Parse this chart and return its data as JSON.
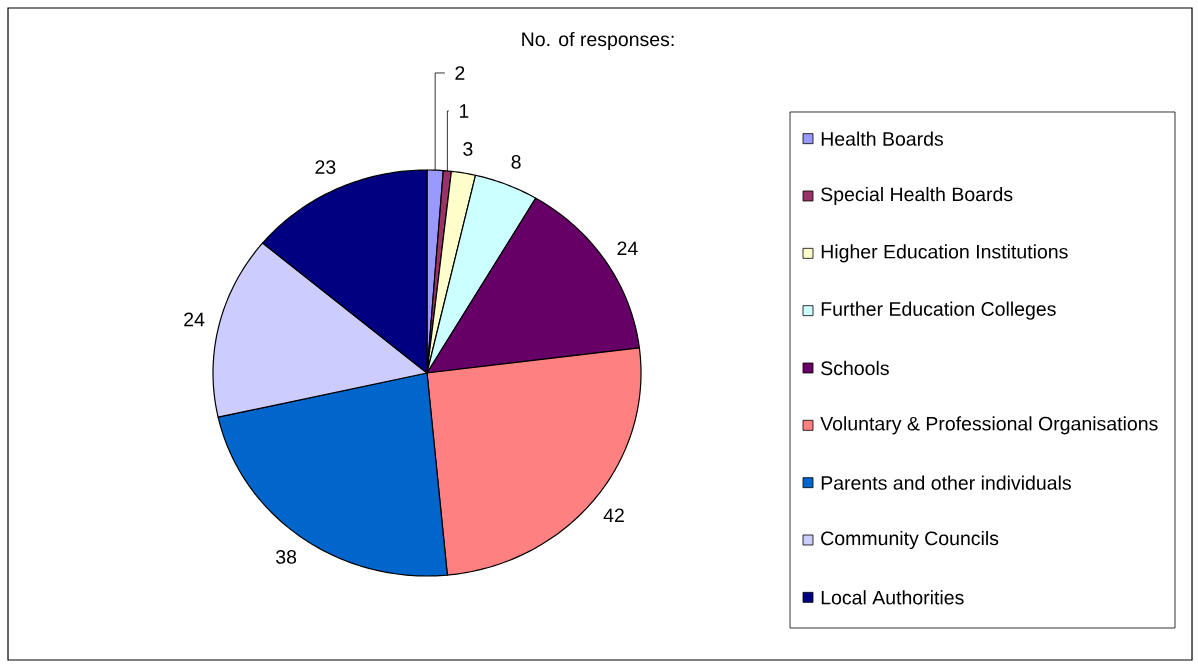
{
  "chart_data": {
    "type": "pie",
    "title": "No. of responses:",
    "categories": [
      "Health Boards",
      "Special Health Boards",
      "Higher Education Institutions",
      "Further Education Colleges",
      "Schools",
      "Voluntary & Professional Organisations",
      "Parents and other individuals",
      "Community Councils",
      "Local Authorities"
    ],
    "values": [
      2,
      1,
      3,
      8,
      24,
      42,
      38,
      24,
      23
    ],
    "colors": [
      "#9999ff",
      "#993366",
      "#ffffcc",
      "#ccffff",
      "#660066",
      "#ff8080",
      "#0066cc",
      "#ccccff",
      "#000080"
    ],
    "data_labels": true,
    "legend": "right"
  }
}
